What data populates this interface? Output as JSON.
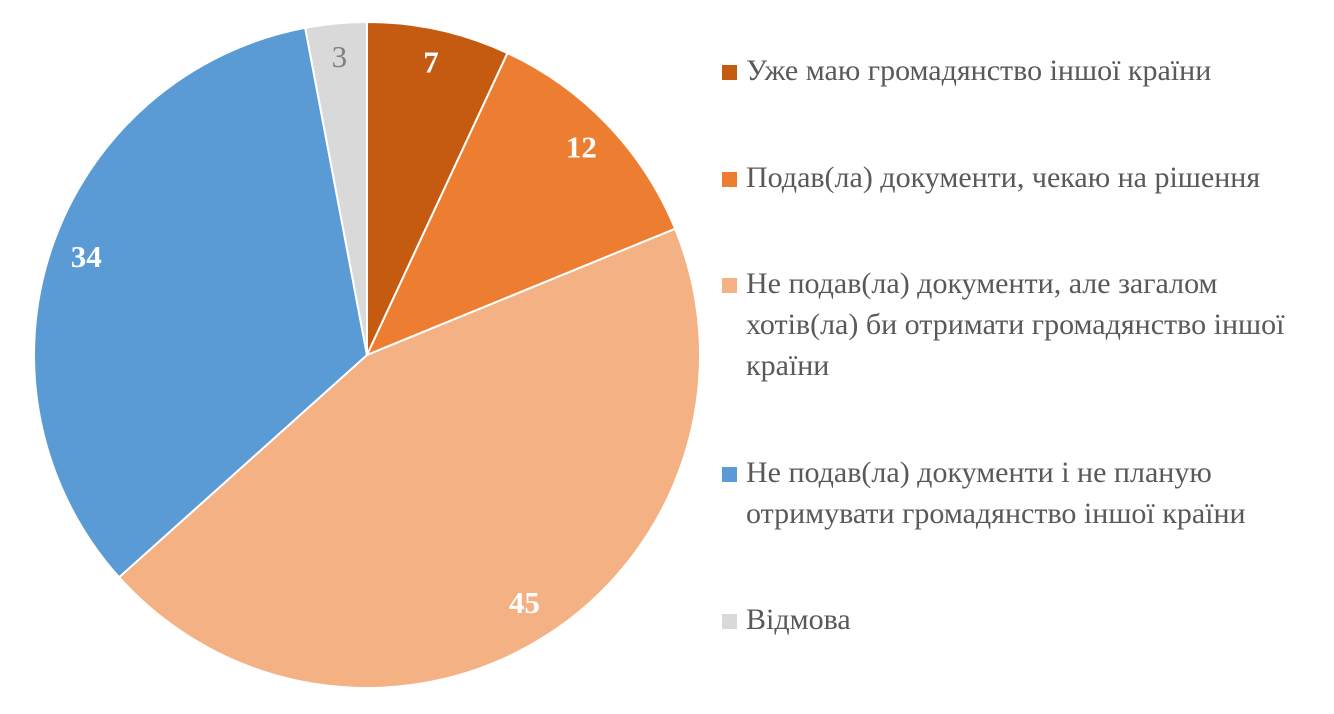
{
  "chart_data": {
    "type": "pie",
    "categories": [
      "Уже маю громадянство іншої країни",
      "Подав(ла) документи, чекаю на рішення",
      "Не подав(ла) документи, але загалом хотів(ла) би отримати громадянство іншої країни",
      "Не подав(ла) документи і не планую отримувати громадянство іншої країни",
      "Відмова"
    ],
    "values": [
      7,
      12,
      45,
      34,
      3
    ],
    "colors": [
      "#c55a11",
      "#ed7d31",
      "#f4b183",
      "#5b9bd5",
      "#d9d9d9"
    ],
    "value_label_colors": [
      "#ffffff",
      "#ffffff",
      "#ffffff",
      "#ffffff",
      "#7f7f7f"
    ],
    "legend": "right"
  }
}
